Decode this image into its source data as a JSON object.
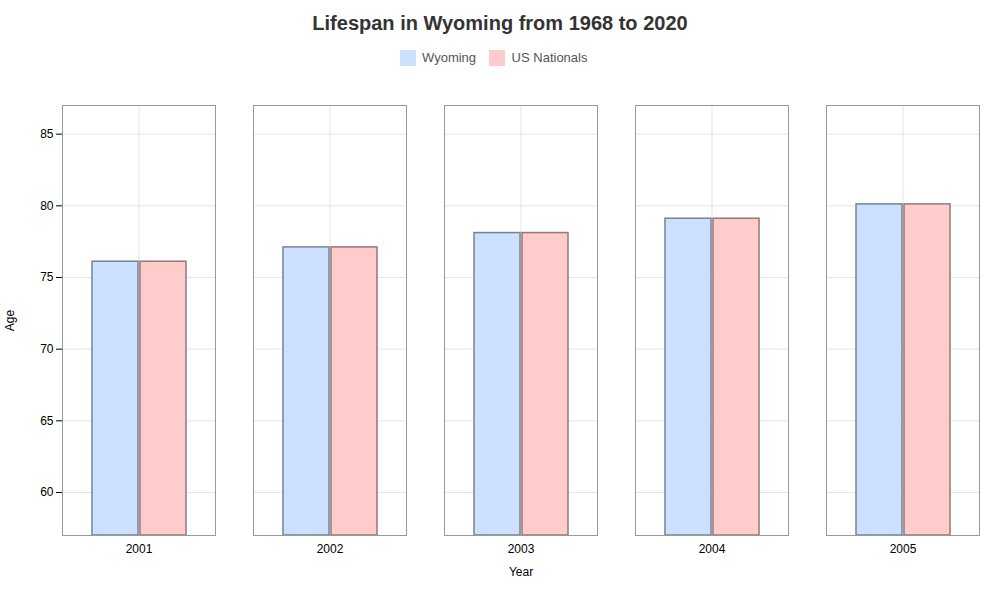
{
  "chart_data": {
    "type": "bar",
    "title": "Lifespan in Wyoming from 1968 to 2020",
    "xlabel": "Year",
    "ylabel": "Age",
    "categories": [
      "2001",
      "2002",
      "2003",
      "2004",
      "2005"
    ],
    "series": [
      {
        "name": "Wyoming",
        "color": "#cce0ff",
        "values": [
          76.1,
          77.1,
          78.1,
          79.1,
          80.1
        ]
      },
      {
        "name": "US Nationals",
        "color": "#ffcccc",
        "values": [
          76.1,
          77.1,
          78.1,
          79.1,
          80.1
        ]
      }
    ],
    "ylim": [
      57,
      87
    ],
    "yticks": [
      60,
      65,
      70,
      75,
      80,
      85
    ],
    "grid": true,
    "legend": "top"
  }
}
